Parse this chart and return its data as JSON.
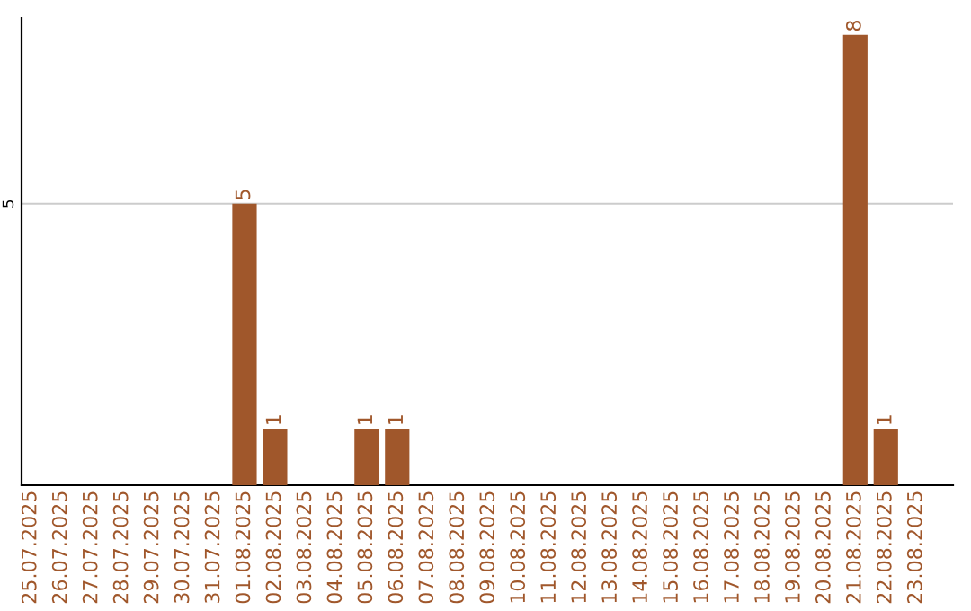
{
  "chart_data": {
    "type": "bar",
    "categories": [
      "25.07.2025",
      "26.07.2025",
      "27.07.2025",
      "28.07.2025",
      "29.07.2025",
      "30.07.2025",
      "31.07.2025",
      "01.08.2025",
      "02.08.2025",
      "03.08.2025",
      "04.08.2025",
      "05.08.2025",
      "06.08.2025",
      "07.08.2025",
      "08.08.2025",
      "09.08.2025",
      "10.08.2025",
      "11.08.2025",
      "12.08.2025",
      "13.08.2025",
      "14.08.2025",
      "15.08.2025",
      "16.08.2025",
      "17.08.2025",
      "18.08.2025",
      "19.08.2025",
      "20.08.2025",
      "21.08.2025",
      "22.08.2025",
      "23.08.2025"
    ],
    "values": [
      0,
      0,
      0,
      0,
      0,
      0,
      0,
      5,
      1,
      0,
      0,
      1,
      1,
      0,
      0,
      0,
      0,
      0,
      0,
      0,
      0,
      0,
      0,
      0,
      0,
      0,
      0,
      8,
      1,
      0
    ],
    "value_labels": [
      null,
      null,
      null,
      null,
      null,
      null,
      null,
      "5",
      "1",
      null,
      null,
      "1",
      "1",
      null,
      null,
      null,
      null,
      null,
      null,
      null,
      null,
      null,
      null,
      null,
      null,
      null,
      null,
      "8",
      "1",
      null
    ],
    "color": "#a0572b",
    "ylim": [
      0,
      8.3
    ],
    "yticks": [
      5
    ],
    "grid": "y"
  }
}
